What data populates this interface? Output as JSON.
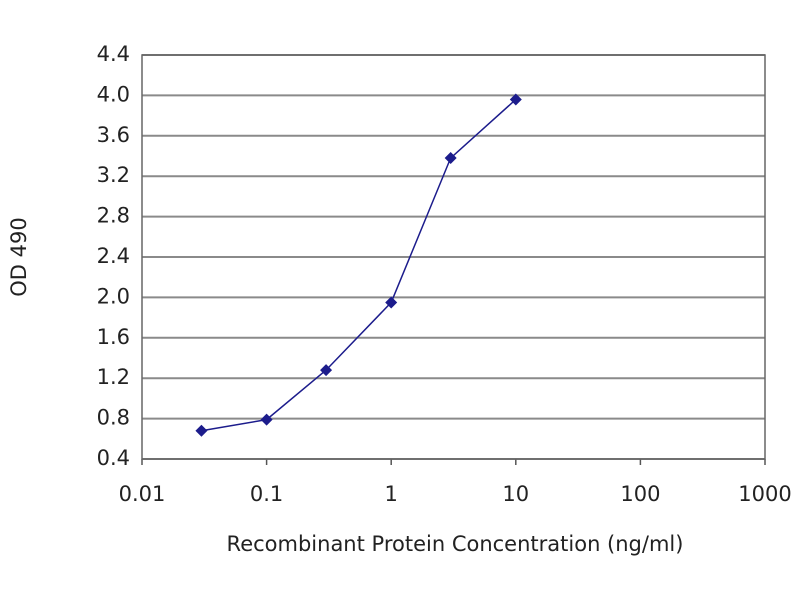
{
  "chart_data": {
    "type": "line",
    "x_label": "Recombinant Protein Concentration (ng/ml)",
    "y_label": "OD 490",
    "x": [
      0.03,
      0.1,
      0.3,
      1,
      3,
      10
    ],
    "values": [
      0.68,
      0.79,
      1.28,
      1.95,
      3.38,
      3.96
    ],
    "color": "#1c1c8c",
    "xlog": true,
    "xlim": [
      0.01,
      1000
    ],
    "xticks": [
      0.01,
      0.1,
      1,
      10,
      100,
      1000
    ],
    "ylim": [
      0.4,
      4.4
    ],
    "yticks": [
      0.4,
      0.8,
      1.2,
      1.6,
      {
        "value": 2,
        "label": "2.0"
      },
      2.4,
      2.8,
      3.2,
      3.6,
      {
        "value": 4,
        "label": "4.0"
      },
      4.4
    ],
    "grid": true
  }
}
